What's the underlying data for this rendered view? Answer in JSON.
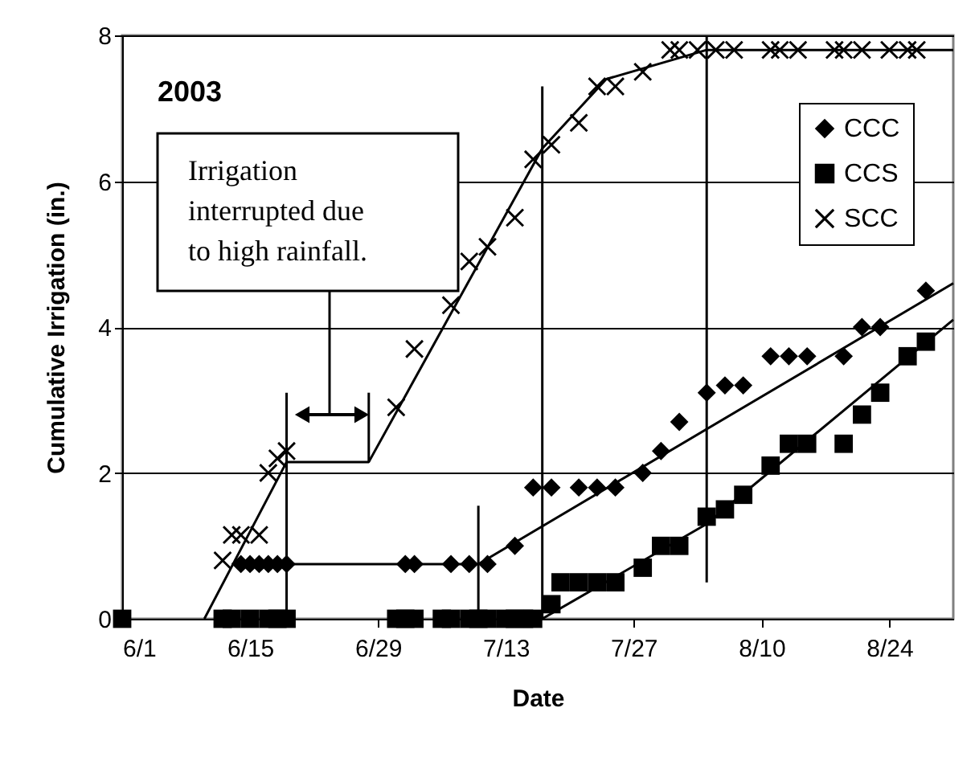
{
  "chart_data": {
    "type": "scatter",
    "xlabel": "Date",
    "ylabel": "Cumulative Irrigation (in.)",
    "xlim": [
      "--06-01",
      "--08-31"
    ],
    "xticks": [
      {
        "value": "--06-01",
        "label": "6/1"
      },
      {
        "value": "--06-15",
        "label": "6/15"
      },
      {
        "value": "--06-29",
        "label": "6/29"
      },
      {
        "value": "--07-13",
        "label": "7/13"
      },
      {
        "value": "--07-27",
        "label": "7/27"
      },
      {
        "value": "--08-10",
        "label": "8/10"
      },
      {
        "value": "--08-24",
        "label": "8/24"
      }
    ],
    "ylim": [
      0,
      8
    ],
    "yticks": [
      0,
      2,
      4,
      6,
      8
    ],
    "grid": "y",
    "legend": "top right",
    "annotations": [
      "2003",
      "Irrigation interrupted due to high rainfall."
    ],
    "series": [
      {
        "type": "line",
        "color": "#000000",
        "x": [
          "--06-10",
          "--06-19",
          "--06-28",
          "--07-17",
          "--07-24",
          "--08-04",
          "--08-31"
        ],
        "values": [
          0,
          2.15,
          2.15,
          6.45,
          7.4,
          7.8,
          7.8
        ]
      },
      {
        "type": "line",
        "color": "#000000",
        "x": [
          "--06-13",
          "--07-10",
          "--08-31"
        ],
        "values": [
          0.75,
          0.75,
          4.6
        ]
      },
      {
        "type": "line",
        "color": "#000000",
        "x": [
          "--07-17",
          "--08-04",
          "--08-31"
        ],
        "values": [
          0,
          1.3,
          4.1
        ]
      },
      {
        "type": "line",
        "color": "#000000",
        "x": [
          "--06-19",
          "--06-19"
        ],
        "values": [
          3.1,
          0
        ]
      },
      {
        "type": "line",
        "color": "#000000",
        "x": [
          "--06-28",
          "--06-28"
        ],
        "values": [
          3.1,
          2.15
        ]
      },
      {
        "type": "line",
        "color": "#000000",
        "x": [
          "--07-10",
          "--07-10"
        ],
        "values": [
          1.55,
          0
        ]
      },
      {
        "type": "line",
        "color": "#000000",
        "x": [
          "--07-17",
          "--07-17"
        ],
        "values": [
          7.3,
          0
        ]
      },
      {
        "type": "line",
        "color": "#000000",
        "x": [
          "--08-04",
          "--08-04"
        ],
        "values": [
          8,
          0.5
        ]
      },
      {
        "name": "CCC",
        "color": "#000000",
        "marker": "diamond",
        "x": [
          "--06-14",
          "--06-15",
          "--06-16",
          "--06-17",
          "--06-18",
          "--06-19",
          "--07-02",
          "--07-03",
          "--07-07",
          "--07-09",
          "--07-11",
          "--07-14",
          "--07-16",
          "--07-18",
          "--07-21",
          "--07-23",
          "--07-25",
          "--07-28",
          "--07-30",
          "--08-01",
          "--08-04",
          "--08-06",
          "--08-08",
          "--08-11",
          "--08-13",
          "--08-15",
          "--08-19",
          "--08-21",
          "--08-23",
          "--08-28"
        ],
        "values": [
          0.75,
          0.75,
          0.75,
          0.75,
          0.75,
          0.75,
          0.75,
          0.75,
          0.75,
          0.75,
          0.75,
          1.0,
          1.8,
          1.8,
          1.8,
          1.8,
          1.8,
          2.0,
          2.3,
          2.7,
          3.1,
          3.2,
          3.2,
          3.6,
          3.6,
          3.6,
          3.6,
          4.0,
          4.0,
          4.5
        ]
      },
      {
        "name": "CCS",
        "color": "#000000",
        "marker": "square",
        "x": [
          "--06-01",
          "--06-12",
          "--06-13",
          "--06-15",
          "--06-17",
          "--06-18",
          "--06-19",
          "--07-01",
          "--07-02",
          "--07-03",
          "--07-06",
          "--07-07",
          "--07-09",
          "--07-10",
          "--07-11",
          "--07-13",
          "--07-14",
          "--07-15",
          "--07-16",
          "--07-18",
          "--07-19",
          "--07-21",
          "--07-23",
          "--07-25",
          "--07-28",
          "--07-30",
          "--08-01",
          "--08-04",
          "--08-06",
          "--08-08",
          "--08-11",
          "--08-13",
          "--08-15",
          "--08-19",
          "--08-21",
          "--08-23",
          "--08-26",
          "--08-28"
        ],
        "values": [
          0,
          0,
          0,
          0,
          0,
          0,
          0,
          0,
          0,
          0,
          0,
          0,
          0,
          0,
          0,
          0,
          0,
          0,
          0,
          0.2,
          0.5,
          0.5,
          0.5,
          0.5,
          0.7,
          1.0,
          1.0,
          1.4,
          1.5,
          1.7,
          2.1,
          2.4,
          2.4,
          2.4,
          2.8,
          3.1,
          3.6,
          3.8
        ]
      },
      {
        "name": "SCC",
        "color": "#000000",
        "marker": "cross",
        "x": [
          "--06-12",
          "--06-13",
          "--06-14",
          "--06-16",
          "--06-17",
          "--06-18",
          "--06-19",
          "--07-01",
          "--07-03",
          "--07-07",
          "--07-09",
          "--07-11",
          "--07-14",
          "--07-16",
          "--07-18",
          "--07-21",
          "--07-23",
          "--07-25",
          "--07-28",
          "--07-31",
          "--08-01",
          "--08-03",
          "--08-05",
          "--08-07",
          "--08-11",
          "--08-12",
          "--08-14",
          "--08-18",
          "--08-19",
          "--08-21",
          "--08-24",
          "--08-26",
          "--08-27"
        ],
        "values": [
          0.8,
          1.15,
          1.15,
          1.15,
          2.0,
          2.2,
          2.3,
          2.9,
          3.7,
          4.3,
          4.9,
          5.1,
          5.5,
          6.3,
          6.5,
          6.8,
          7.3,
          7.3,
          7.5,
          7.8,
          7.8,
          7.8,
          7.8,
          7.8,
          7.8,
          7.8,
          7.8,
          7.8,
          7.8,
          7.8,
          7.8,
          7.8,
          7.8
        ]
      }
    ]
  }
}
